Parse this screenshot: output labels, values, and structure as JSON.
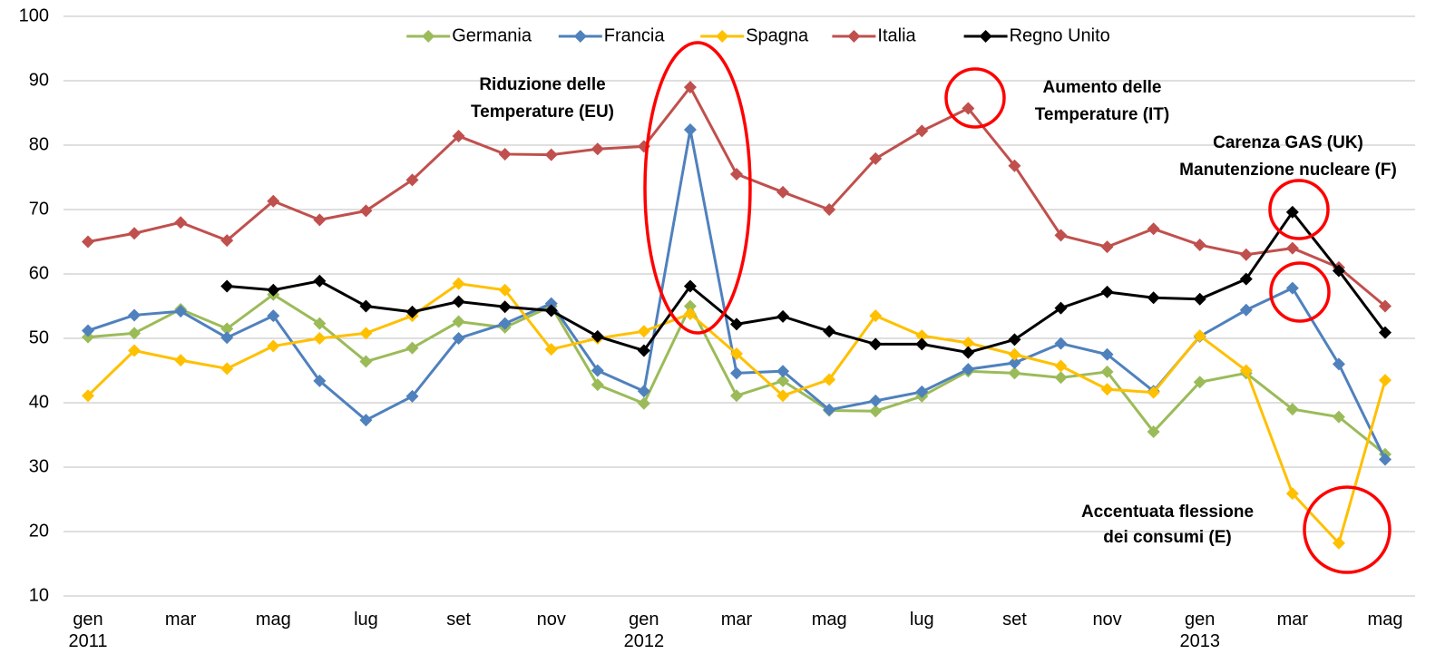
{
  "chart_data": {
    "type": "line",
    "categories": [
      "gen 2011",
      null,
      "mar",
      null,
      "mag",
      null,
      "lug",
      null,
      "set",
      null,
      "nov",
      null,
      "gen 2012",
      null,
      "mar",
      null,
      "mag",
      null,
      "lug",
      null,
      "set",
      null,
      "nov",
      null,
      "gen 2013",
      null,
      "mar",
      null,
      "mag"
    ],
    "series": [
      {
        "name": "Germania",
        "color": "#9bbb59",
        "values": [
          50.2,
          50.8,
          54.5,
          51.5,
          56.8,
          52.3,
          46.4,
          48.5,
          52.6,
          51.7,
          55,
          42.8,
          39.9,
          55,
          41.1,
          43.4,
          38.8,
          38.7,
          41,
          44.9,
          44.6,
          43.9,
          44.8,
          35.5,
          43.2,
          44.6,
          39,
          37.8,
          32
        ]
      },
      {
        "name": "Francia",
        "color": "#4f81bd",
        "values": [
          51.2,
          53.6,
          54.2,
          50.1,
          53.5,
          43.4,
          37.3,
          41,
          50,
          52.3,
          55.4,
          45,
          41.8,
          82.4,
          44.6,
          44.9,
          38.9,
          40.3,
          41.7,
          45.2,
          46.2,
          49.2,
          47.5,
          41.8,
          50.3,
          54.4,
          57.8,
          46,
          31.2
        ]
      },
      {
        "name": "Spagna",
        "color": "#ffc000",
        "values": [
          41.1,
          48.1,
          46.6,
          45.3,
          48.8,
          50,
          50.8,
          53.5,
          58.5,
          57.5,
          48.3,
          50,
          51.1,
          53.8,
          47.6,
          41.1,
          43.6,
          53.5,
          50.4,
          49.3,
          47.5,
          45.7,
          42.1,
          41.6,
          50.4,
          45,
          25.9,
          18.2,
          43.5
        ]
      },
      {
        "name": "Italia",
        "color": "#c0504d",
        "values": [
          65,
          66.3,
          68,
          65.2,
          71.3,
          68.4,
          69.8,
          74.6,
          81.4,
          78.6,
          78.5,
          79.4,
          79.8,
          89,
          75.5,
          72.7,
          70,
          77.9,
          82.2,
          85.7,
          76.8,
          66,
          64.2,
          67,
          64.5,
          63,
          64,
          61,
          55
        ]
      },
      {
        "name": "Regno Unito",
        "color": "#000000",
        "values": [
          null,
          null,
          null,
          58.1,
          57.5,
          58.9,
          55,
          54.1,
          55.7,
          54.9,
          54.3,
          50.3,
          48.1,
          58.1,
          52.2,
          53.4,
          51.1,
          49.1,
          49.1,
          47.8,
          49.8,
          54.7,
          57.2,
          56.3,
          56.1,
          59.2,
          69.6,
          60.5,
          50.9
        ]
      }
    ],
    "ylim": [
      10,
      100
    ],
    "yticks": [
      10,
      20,
      30,
      40,
      50,
      60,
      70,
      80,
      90,
      100
    ],
    "grid": true,
    "legend": "top",
    "annotations": [
      {
        "lines": [
          "Riduzione delle",
          "Temperature (EU)"
        ]
      },
      {
        "lines": [
          "Aumento delle",
          "Temperature (IT)"
        ]
      },
      {
        "lines": [
          "Carenza GAS (UK)",
          "Manutenzione nucleare (F)"
        ]
      },
      {
        "lines": [
          "Accentuata flessione",
          "dei consumi (E)"
        ]
      }
    ]
  }
}
